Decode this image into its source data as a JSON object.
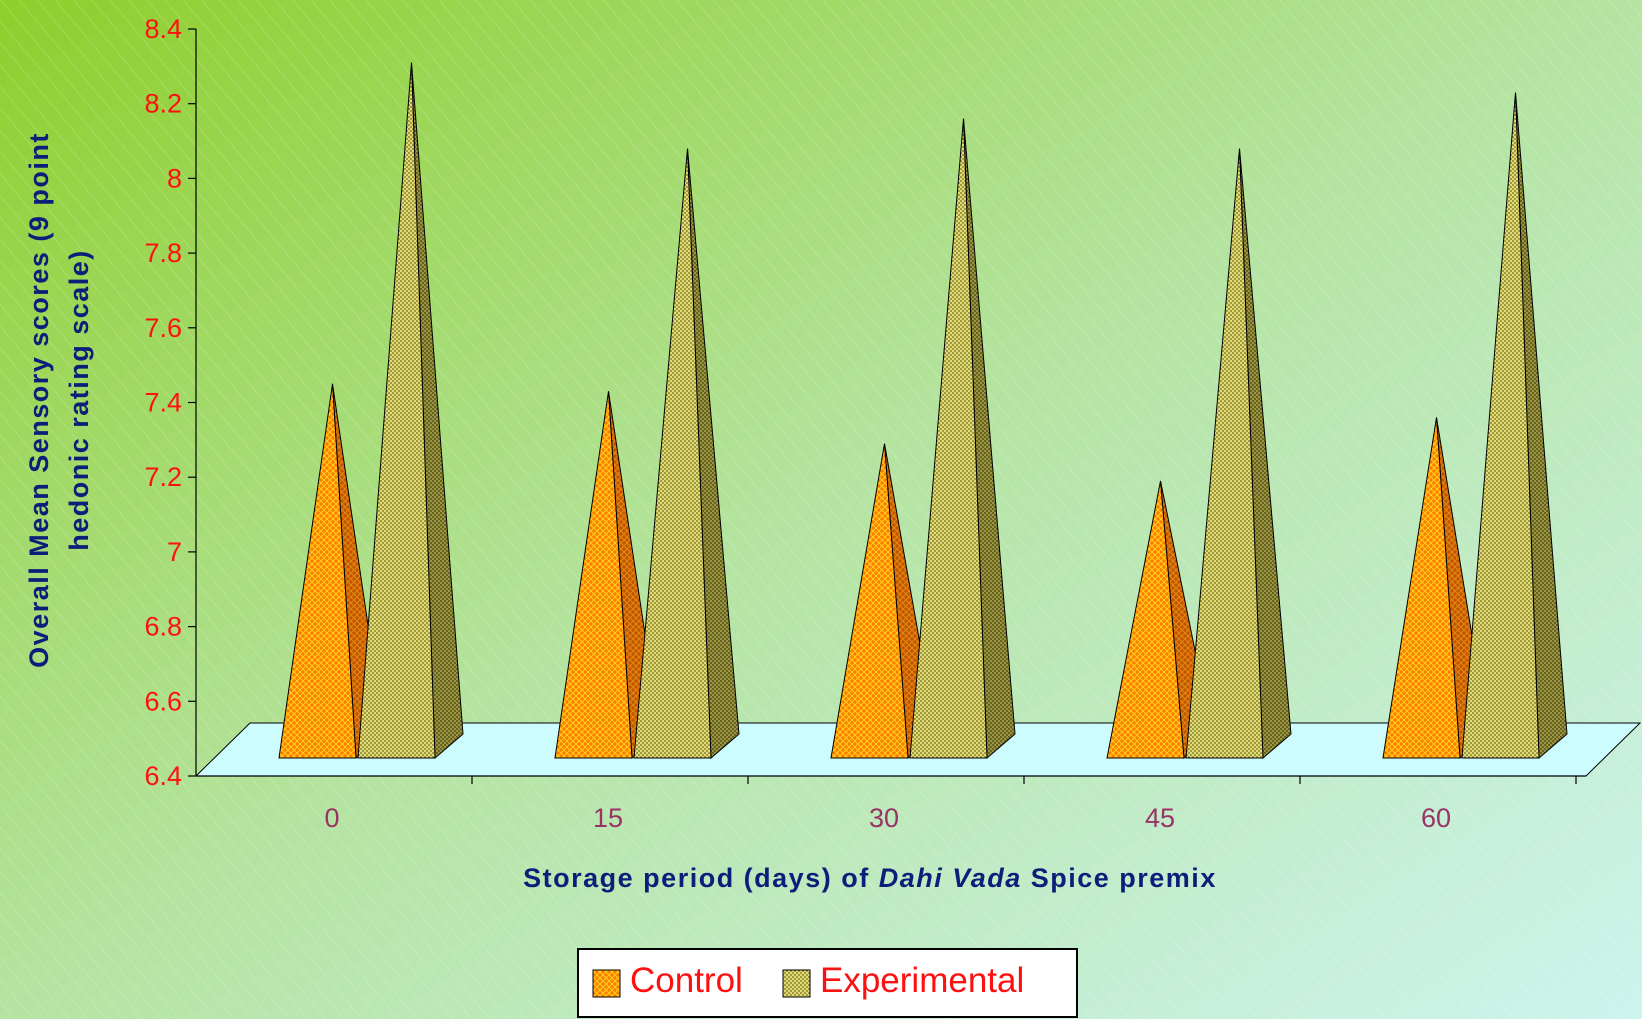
{
  "chart_data": {
    "type": "bar",
    "subtype": "3d-pyramid",
    "categories": [
      "0",
      "15",
      "30",
      "45",
      "60"
    ],
    "series": [
      {
        "name": "Control",
        "values": [
          7.45,
          7.43,
          7.29,
          7.19,
          7.36
        ],
        "color": "#ff7700",
        "pattern": "cross-hatch"
      },
      {
        "name": "Experimental",
        "values": [
          8.31,
          8.08,
          8.16,
          8.08,
          8.23
        ],
        "color": "#d8d46a",
        "pattern": "dotted"
      }
    ],
    "xlabel": {
      "pre": "Storage period (days) of ",
      "italic": "Dahi Vada",
      "post": " Spice premix"
    },
    "ylabel": {
      "line1": "Overall Mean Sensory scores (9 point",
      "line2": "hedonic rating scale)"
    },
    "ylim": [
      6.4,
      8.4
    ],
    "yticks": [
      "6.4",
      "6.6",
      "6.8",
      "7",
      "7.2",
      "7.4",
      "7.6",
      "7.8",
      "8",
      "8.2",
      "8.4"
    ],
    "legend": {
      "position": "bottom-center"
    },
    "colors": {
      "background_from": "#8ecf2c",
      "background_to": "#cdf4ee",
      "floor": "#cdfcff",
      "axis_text": "#ff1010",
      "category_text": "#993366",
      "title_text": "#0b1f7a"
    }
  }
}
